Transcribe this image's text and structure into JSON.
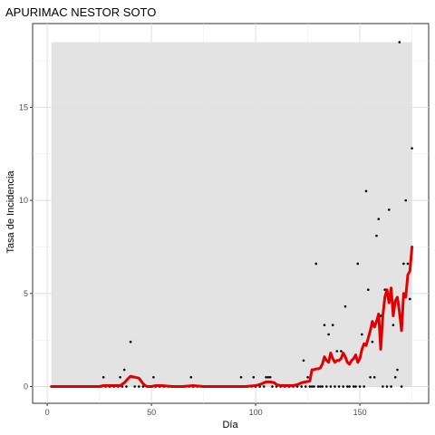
{
  "chart_data": {
    "type": "line",
    "title": "APURIMAC NESTOR SOTO",
    "xlabel": "Día",
    "ylabel": "Tasa de Incidencia",
    "xlim": [
      -7,
      183
    ],
    "ylim": [
      -0.9,
      19.5
    ],
    "xticks": [
      0,
      50,
      100,
      150
    ],
    "yticks": [
      0,
      5,
      10,
      15
    ],
    "grid": true,
    "ribbon": {
      "x": [
        2,
        175
      ],
      "ymin": 0,
      "ymax": 18.5,
      "color": "#e0e0e0"
    },
    "series": [
      {
        "kind": "points",
        "color": "#000000",
        "x": [
          2,
          4,
          6,
          8,
          10,
          12,
          14,
          16,
          18,
          20,
          22,
          24,
          26,
          27,
          28,
          30,
          32,
          34,
          35,
          36,
          37,
          38,
          40,
          41,
          42,
          44,
          46,
          48,
          50,
          51,
          52,
          54,
          56,
          58,
          60,
          62,
          64,
          66,
          68,
          69,
          70,
          72,
          74,
          76,
          78,
          80,
          82,
          84,
          86,
          88,
          90,
          92,
          93,
          94,
          96,
          98,
          99,
          100,
          102,
          104,
          105,
          106,
          107,
          108,
          110,
          112,
          114,
          116,
          118,
          120,
          122,
          123,
          124,
          125,
          126,
          127,
          128,
          129,
          130,
          131,
          132,
          133,
          134,
          135,
          136,
          137,
          138,
          139,
          140,
          141,
          142,
          143,
          144,
          145,
          146,
          147,
          148,
          149,
          150,
          151,
          152,
          153,
          154,
          155,
          156,
          157,
          158,
          159,
          160,
          161,
          162,
          163,
          164,
          165,
          166,
          167,
          168,
          169,
          170,
          171,
          172,
          173,
          174,
          175
        ],
        "y": [
          0,
          0,
          0,
          0,
          0,
          0,
          0,
          0,
          0,
          0,
          0,
          0,
          0,
          0.5,
          0,
          0,
          0,
          0,
          0.5,
          0,
          0.9,
          0,
          2.4,
          0.5,
          0,
          0,
          0,
          0,
          0,
          0.5,
          0,
          0,
          0,
          0,
          0,
          0,
          0,
          0,
          0,
          0.5,
          0,
          0,
          0,
          0,
          0,
          0,
          0,
          0,
          0,
          0,
          0,
          0,
          0.5,
          0,
          0,
          0,
          0.5,
          0,
          0,
          0,
          0.5,
          0.5,
          0.5,
          0,
          0,
          0,
          0,
          0,
          0,
          0,
          0,
          1.4,
          0,
          0.5,
          0,
          0,
          0,
          6.6,
          0,
          0,
          0,
          3.3,
          0,
          2.8,
          0,
          3.3,
          0,
          1.9,
          0,
          1.9,
          0,
          4.3,
          0,
          0,
          1.4,
          0,
          0,
          6.6,
          0,
          2.8,
          0,
          10.5,
          5.2,
          0.5,
          2.4,
          0.5,
          8.1,
          9.0,
          3.8,
          0,
          5.2,
          0,
          9.5,
          0,
          3.3,
          0.5,
          0.9,
          18.5,
          0,
          6.6,
          10.0,
          6.6,
          4.7,
          12.8
        ]
      },
      {
        "kind": "line",
        "color": "#e00000",
        "x": [
          2,
          5,
          10,
          15,
          20,
          25,
          27,
          30,
          33,
          35,
          37,
          39,
          40,
          42,
          44,
          46,
          47,
          48,
          50,
          52,
          55,
          60,
          65,
          70,
          75,
          80,
          85,
          90,
          95,
          100,
          103,
          105,
          107,
          109,
          110,
          112,
          114,
          116,
          118,
          120,
          122,
          124,
          126,
          127,
          128,
          129,
          130,
          131,
          132,
          133,
          134,
          135,
          136,
          137,
          138,
          139,
          140,
          141,
          142,
          143,
          144,
          145,
          146,
          147,
          148,
          149,
          150,
          151,
          152,
          153,
          154,
          155,
          156,
          157,
          158,
          159,
          160,
          161,
          162,
          163,
          164,
          165,
          166,
          167,
          168,
          169,
          170,
          171,
          172,
          173,
          174,
          175
        ],
        "y": [
          0,
          0,
          0,
          0,
          0,
          0,
          0.05,
          0.05,
          0.05,
          0.05,
          0.2,
          0.45,
          0.55,
          0.5,
          0.45,
          0.15,
          0.05,
          0,
          0,
          0.05,
          0.05,
          0,
          0,
          0.05,
          0,
          0,
          0,
          0,
          0,
          0.05,
          0.15,
          0.25,
          0.25,
          0.2,
          0.1,
          0.05,
          0.05,
          0.05,
          0.05,
          0.1,
          0.2,
          0.25,
          0.3,
          0.9,
          0.9,
          0.95,
          0.95,
          1.0,
          1.2,
          1.6,
          1.4,
          1.3,
          1.8,
          1.5,
          1.3,
          1.4,
          1.4,
          1.5,
          1.8,
          1.6,
          1.3,
          1.2,
          1.4,
          1.5,
          1.7,
          1.3,
          1.5,
          2.0,
          2.3,
          2.2,
          2.6,
          3.0,
          3.5,
          3.2,
          3.5,
          3.9,
          2.0,
          3.8,
          4.8,
          5.2,
          4.5,
          5.3,
          3.8,
          4.6,
          4.8,
          4.0,
          3.0,
          5.0,
          4.8,
          6.0,
          6.2,
          7.5
        ]
      }
    ]
  }
}
